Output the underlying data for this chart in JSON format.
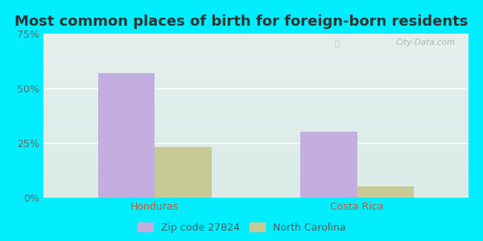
{
  "title": "Most common places of birth for foreign-born residents",
  "categories": [
    "Honduras",
    "Costa Rica"
  ],
  "zip_values": [
    57,
    30
  ],
  "nc_values": [
    23,
    5
  ],
  "zip_color": "#c4aee0",
  "nc_color": "#c8ca96",
  "ylim": [
    0,
    75
  ],
  "yticks": [
    0,
    25,
    50,
    75
  ],
  "ytick_labels": [
    "0%",
    "25%",
    "50%",
    "75%"
  ],
  "xlabel_color": "#cc5533",
  "legend_label_zip": "Zip code 27824",
  "legend_label_nc": "North Carolina",
  "bg_outer": "#00eeff",
  "bg_plot_topleft": "#deeee0",
  "bg_plot_topright": "#e8f0f8",
  "bg_plot_bottomleft": "#d8eedc",
  "bg_plot_bottomright": "#dce8f0",
  "watermark": "City-Data.com",
  "title_fontsize": 13,
  "tick_fontsize": 9,
  "label_fontsize": 9,
  "title_color": "#333333"
}
